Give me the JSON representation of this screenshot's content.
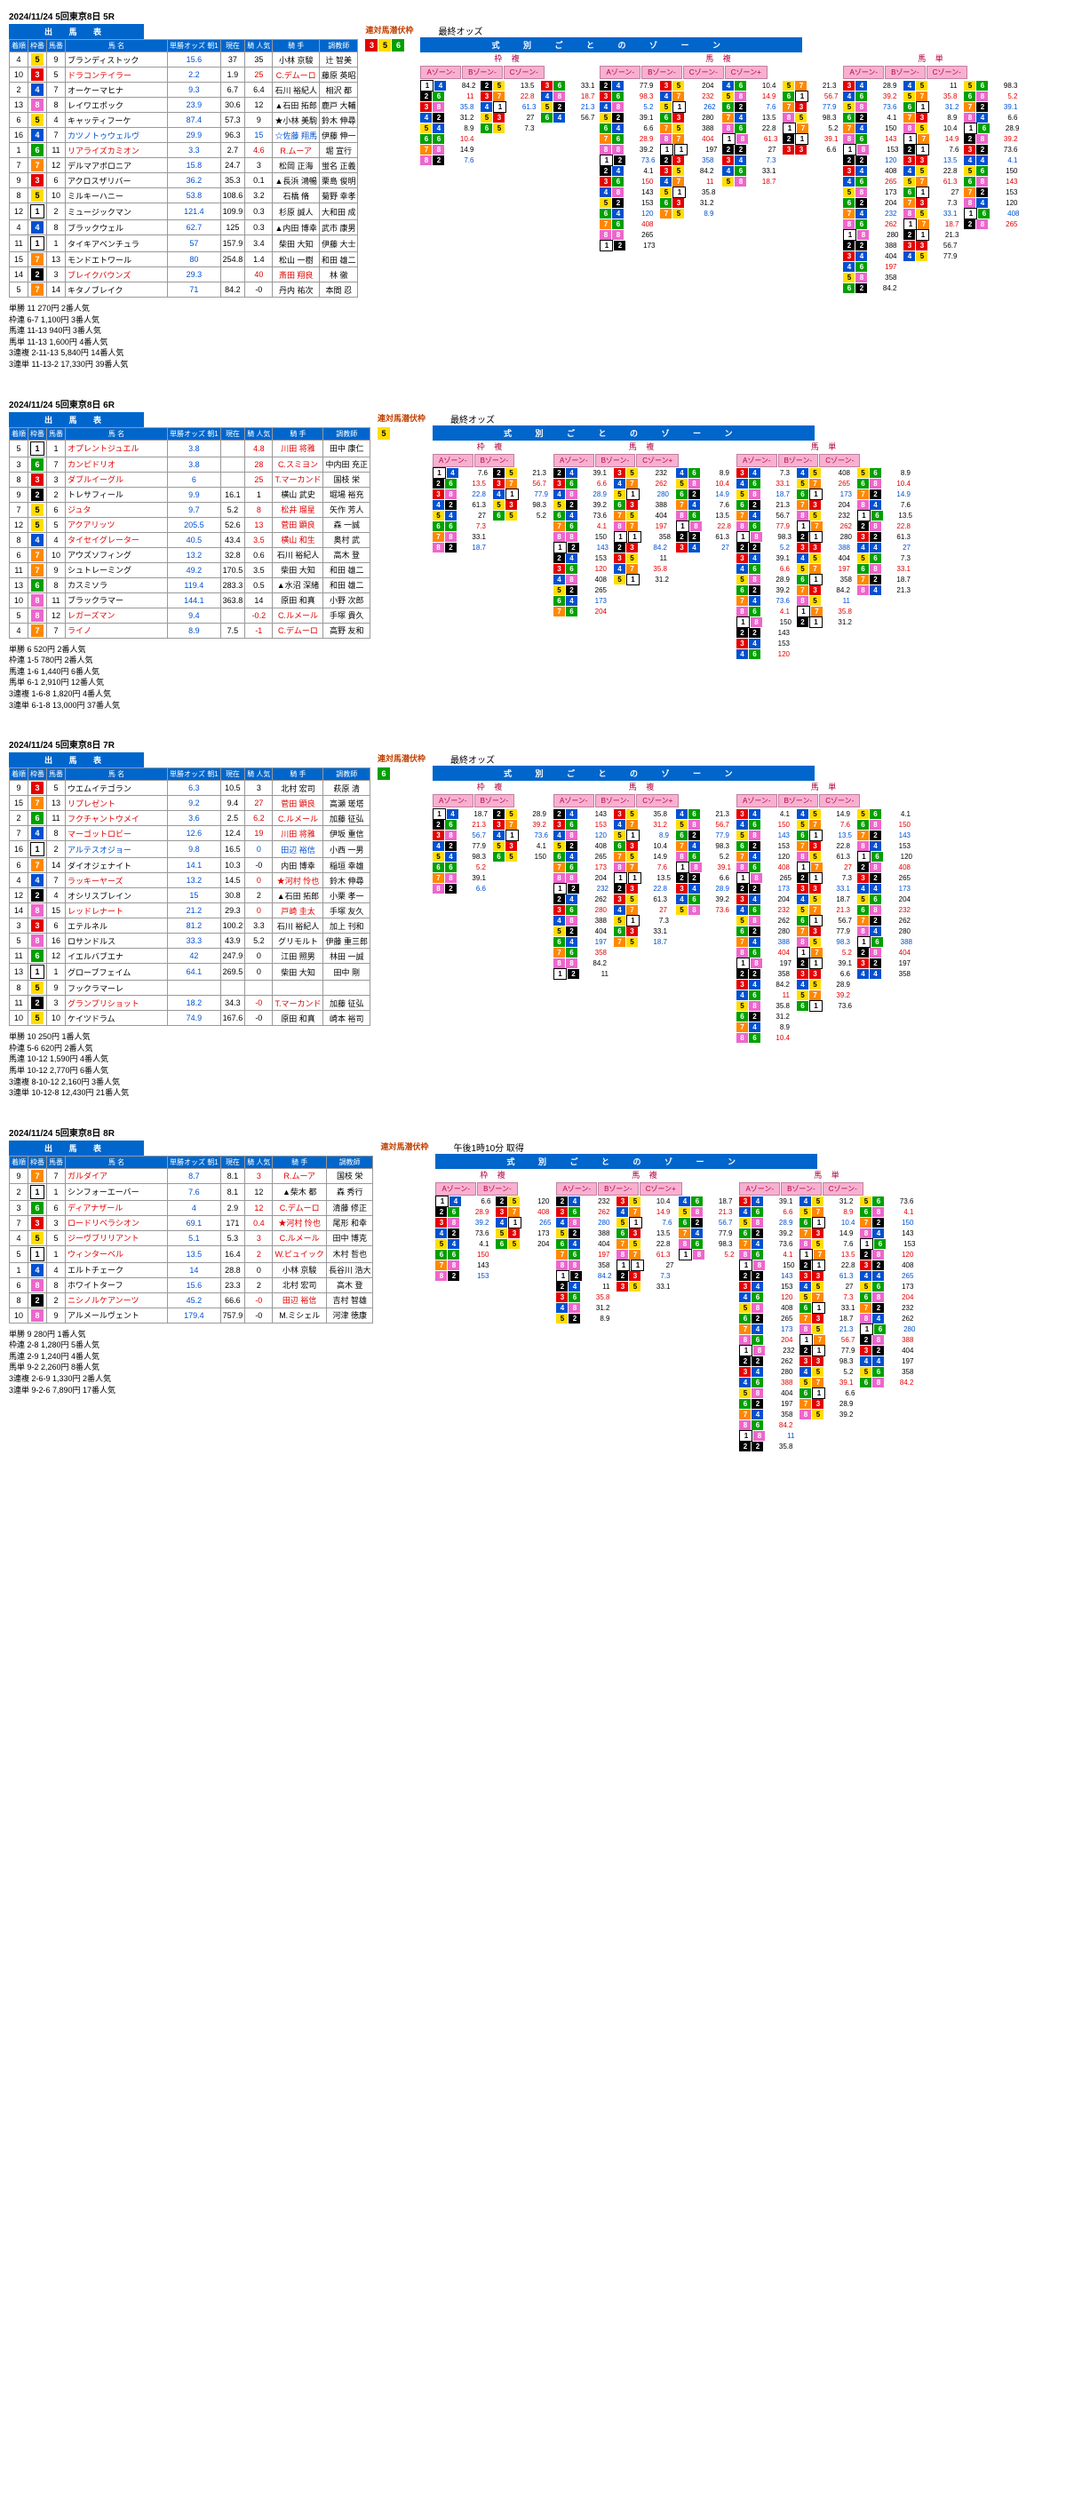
{
  "races": [
    {
      "date": "2024/11/24  5回東京8日  5R",
      "headers": {
        "left": "出 馬 表",
        "odds": "最終オッズ",
        "right": "式 別 ご と の ゾ ー ン"
      },
      "cols": [
        "着順",
        "枠番",
        "馬番",
        "馬 名",
        "単勝オッズ 朝1",
        "現在",
        "騎 人気",
        "騎 手",
        "調教師"
      ],
      "horses": [
        {
          "fr": 4,
          "wk": 5,
          "no": 9,
          "nm": "ブランディストック",
          "o1": "15.6",
          "o2": "37",
          "chg": "35",
          "jk": "小林 京駿",
          "tr": "辻 智美",
          "cls": ""
        },
        {
          "fr": 10,
          "wk": 3,
          "no": 5,
          "nm": "ドラコンテイラー",
          "o1": "2.2",
          "o2": "1.9",
          "chg": "25",
          "jk": "C.デムーロ",
          "tr": "藤原 英昭",
          "cls": "red"
        },
        {
          "fr": 2,
          "wk": 4,
          "no": 7,
          "nm": "オーケーマヒナ",
          "o1": "9.3",
          "o2": "6.7",
          "chg": "6.4",
          "jk": "石川 裕紀人",
          "tr": "相沢 都",
          "cls": ""
        },
        {
          "fr": 13,
          "wk": 8,
          "no": 8,
          "nm": "レイワエポック",
          "o1": "23.9",
          "o2": "30.6",
          "chg": "12",
          "jk": "▲石田 拓郎",
          "tr": "鹿戸 大輔",
          "cls": ""
        },
        {
          "fr": 6,
          "wk": 5,
          "no": 4,
          "nm": "キャッティフーケ",
          "o1": "87.4",
          "o2": "57.3",
          "chg": "9",
          "jk": "★小林 美駒",
          "tr": "鈴木 伸尋",
          "cls": ""
        },
        {
          "fr": 16,
          "wk": 4,
          "no": 7,
          "nm": "カツノトゥウェルヴ",
          "o1": "29.9",
          "o2": "96.3",
          "chg": "15",
          "jk": "☆佐藤 翔馬",
          "tr": "伊藤 伸一",
          "cls": "blue"
        },
        {
          "fr": 1,
          "wk": 6,
          "no": 11,
          "nm": "リアライズカミオン",
          "o1": "3.3",
          "o2": "2.7",
          "chg": "4.6",
          "jk": "R.ムーア",
          "tr": "堀 宣行",
          "cls": "red"
        },
        {
          "fr": 7,
          "wk": 7,
          "no": 12,
          "nm": "デルマアボロニア",
          "o1": "15.8",
          "o2": "24.7",
          "chg": "3",
          "jk": "松岡 正海",
          "tr": "蛍名 正義",
          "cls": ""
        },
        {
          "fr": 9,
          "wk": 3,
          "no": 6,
          "nm": "アクロスザリバー",
          "o1": "36.2",
          "o2": "35.3",
          "chg": "0.1",
          "jk": "▲長浜 鴻暢",
          "tr": "栗島 俊明",
          "cls": ""
        },
        {
          "fr": 8,
          "wk": 5,
          "no": 10,
          "nm": "ミルキーハニー",
          "o1": "53.8",
          "o2": "108.6",
          "chg": "3.2",
          "jk": "石橋 脩",
          "tr": "菊野 幸孝",
          "cls": ""
        },
        {
          "fr": 12,
          "wk": 1,
          "no": 2,
          "nm": "ミュージックマン",
          "o1": "121.4",
          "o2": "109.9",
          "chg": "0.3",
          "jk": "杉原 誠人",
          "tr": "大和田 成",
          "cls": ""
        },
        {
          "fr": 4,
          "wk": 4,
          "no": 8,
          "nm": "ブラックウェル",
          "o1": "62.7",
          "o2": "125",
          "chg": "0.3",
          "jk": "▲内田 博幸",
          "tr": "武市 康男",
          "cls": ""
        },
        {
          "fr": 11,
          "wk": 1,
          "no": 1,
          "nm": "タイキアベンチュラ",
          "o1": "57",
          "o2": "157.9",
          "chg": "3.4",
          "jk": "柴田 大知",
          "tr": "伊藤 大士",
          "cls": ""
        },
        {
          "fr": 15,
          "wk": 7,
          "no": 13,
          "nm": "モンドエトワール",
          "o1": "80",
          "o2": "254.8",
          "chg": "1.4",
          "jk": "松山 一樹",
          "tr": "和田 雄二",
          "cls": ""
        },
        {
          "fr": 14,
          "wk": 2,
          "no": 3,
          "nm": "ブレイクバウンズ",
          "o1": "29.3",
          "o2": "",
          "chg": "40",
          "jk": "斎田 翔良",
          "tr": "林 徹",
          "cls": "red"
        },
        {
          "fr": 5,
          "wk": 7,
          "no": 14,
          "nm": "キタノブレイク",
          "o1": "71",
          "o2": "84.2",
          "chg": "-0",
          "jk": "丹内 祐次",
          "tr": "本間 忍",
          "cls": ""
        }
      ],
      "payouts": [
        "単勝  11  270円  2番人気",
        "枠連  6-7  1,100円  3番人気",
        "馬連  11-13  940円  3番人気",
        "馬単  11-13  1,600円  4番人気",
        "3連複  2-11-13  5,840円  14番人気",
        "3連単  11-13-2  17,330円  39番人気"
      ],
      "rentai": "連対馬潜伏枠",
      "rentai_wk": [
        3,
        5,
        6
      ],
      "zone_groups": [
        {
          "title": "枠 複",
          "zones": [
            "Aゾーン-",
            "Bゾーン-",
            "Cゾーン-"
          ],
          "rows": 8
        },
        {
          "title": "馬 複",
          "zones": [
            "Aゾーン-",
            "Bゾーン-",
            "Cゾーン-",
            "Cゾーン+"
          ],
          "rows": 16
        },
        {
          "title": "馬 単",
          "zones": [
            "Aゾーン-",
            "Bゾーン-",
            "Cゾーン-"
          ],
          "rows": 20
        }
      ]
    },
    {
      "date": "2024/11/24  5回東京8日  6R",
      "headers": {
        "left": "出 馬 表",
        "odds": "最終オッズ",
        "right": "式 別 ご と の ゾ ー ン"
      },
      "cols": [
        "着順",
        "枠番",
        "馬番",
        "馬 名",
        "単勝オッズ 朝1",
        "現在",
        "騎 人気",
        "騎 手",
        "調教師"
      ],
      "horses": [
        {
          "fr": 5,
          "wk": 1,
          "no": 1,
          "nm": "オプレントジュエル",
          "o1": "3.8",
          "o2": "",
          "chg": "4.8",
          "jk": "川田 将雅",
          "tr": "田中 康仁",
          "cls": "red"
        },
        {
          "fr": 3,
          "wk": 6,
          "no": 7,
          "nm": "カンピドリオ",
          "o1": "3.8",
          "o2": "",
          "chg": "28",
          "jk": "C.スミヨン",
          "tr": "中内田 充正",
          "cls": "red"
        },
        {
          "fr": 8,
          "wk": 3,
          "no": 3,
          "nm": "ダブルイーグル",
          "o1": "6",
          "o2": "",
          "chg": "25",
          "jk": "T.マーカンド",
          "tr": "国枝 栄",
          "cls": "red"
        },
        {
          "fr": 9,
          "wk": 2,
          "no": 2,
          "nm": "トレサフィール",
          "o1": "9.9",
          "o2": "16.1",
          "chg": "1",
          "jk": "横山 武史",
          "tr": "堀場 裕充",
          "cls": ""
        },
        {
          "fr": 7,
          "wk": 5,
          "no": 6,
          "nm": "ジュタ",
          "o1": "9.7",
          "o2": "5.2",
          "chg": "8",
          "jk": "松井 瑠星",
          "tr": "矢作 芳人",
          "cls": "red"
        },
        {
          "fr": 12,
          "wk": 5,
          "no": 5,
          "nm": "アクアリッツ",
          "o1": "205.5",
          "o2": "52.6",
          "chg": "13",
          "jk": "菅田 顕良",
          "tr": "森 一誠",
          "cls": "red"
        },
        {
          "fr": 8,
          "wk": 4,
          "no": 4,
          "nm": "タイセイグレーター",
          "o1": "40.5",
          "o2": "43.4",
          "chg": "3.5",
          "jk": "横山 和生",
          "tr": "奥村 武",
          "cls": "red"
        },
        {
          "fr": 6,
          "wk": 7,
          "no": 10,
          "nm": "アウズソフィング",
          "o1": "13.2",
          "o2": "32.8",
          "chg": "0.6",
          "jk": "石川 裕紀人",
          "tr": "高木 登",
          "cls": ""
        },
        {
          "fr": 11,
          "wk": 7,
          "no": 9,
          "nm": "シュトレーミング",
          "o1": "49.2",
          "o2": "170.5",
          "chg": "3.5",
          "jk": "柴田 大知",
          "tr": "和田 雄二",
          "cls": ""
        },
        {
          "fr": 13,
          "wk": 6,
          "no": 8,
          "nm": "カスミソラ",
          "o1": "119.4",
          "o2": "283.3",
          "chg": "0.5",
          "jk": "▲水沼 深緒",
          "tr": "和田 雄二",
          "cls": ""
        },
        {
          "fr": 10,
          "wk": 8,
          "no": 11,
          "nm": "ブラックラマー",
          "o1": "144.1",
          "o2": "363.8",
          "chg": "14",
          "jk": "原田 和真",
          "tr": "小野 次郎",
          "cls": ""
        },
        {
          "fr": 5,
          "wk": 8,
          "no": 12,
          "nm": "レガーズマン",
          "o1": "9.4",
          "o2": "",
          "chg": "-0.2",
          "jk": "C.ルメール",
          "tr": "手塚 貴久",
          "cls": "red"
        },
        {
          "fr": 4,
          "wk": 7,
          "no": 7,
          "nm": "ライノ",
          "o1": "8.9",
          "o2": "7.5",
          "chg": "-1",
          "jk": "C.デムーロ",
          "tr": "高野 友和",
          "cls": "red"
        }
      ],
      "payouts": [
        "単勝  6  520円  2番人気",
        "枠連  1-5  780円  2番人気",
        "馬連  1-6  1,440円  6番人気",
        "馬単  6-1  2,910円  12番人気",
        "3連複  1-6-8  1,820円  4番人気",
        "3連単  6-1-8  13,000円  37番人気"
      ],
      "rentai": "連対馬潜伏枠",
      "rentai_wk": [
        5
      ],
      "zone_groups": [
        {
          "title": "枠 複",
          "zones": [
            "Aゾーン-",
            "Bゾーン-"
          ],
          "rows": 8
        },
        {
          "title": "馬 複",
          "zones": [
            "Aゾーン-",
            "Bゾーン-",
            "Cゾーン+"
          ],
          "rows": 14
        },
        {
          "title": "馬 単",
          "zones": [
            "Aゾーン-",
            "Bゾーン-",
            "Cゾーン-"
          ],
          "rows": 18
        }
      ]
    },
    {
      "date": "2024/11/24  5回東京8日  7R",
      "headers": {
        "left": "出 馬 表",
        "odds": "最終オッズ",
        "right": "式 別 ご と の ゾ ー ン"
      },
      "cols": [
        "着順",
        "枠番",
        "馬番",
        "馬 名",
        "単勝オッズ 朝1",
        "現在",
        "騎 人気",
        "騎 手",
        "調教師"
      ],
      "horses": [
        {
          "fr": 9,
          "wk": 3,
          "no": 5,
          "nm": "ウエムイテゴラン",
          "o1": "6.3",
          "o2": "10.5",
          "chg": "3",
          "jk": "北村 宏司",
          "tr": "萩原 清",
          "cls": ""
        },
        {
          "fr": 15,
          "wk": 7,
          "no": 13,
          "nm": "リプレゼント",
          "o1": "9.2",
          "o2": "9.4",
          "chg": "27",
          "jk": "菅田 顕良",
          "tr": "高瀬 瑳塔",
          "cls": "red"
        },
        {
          "fr": 2,
          "wk": 6,
          "no": 11,
          "nm": "フクチャントウメイ",
          "o1": "3.6",
          "o2": "2.5",
          "chg": "6.2",
          "jk": "C.ルメール",
          "tr": "加藤 征弘",
          "cls": "red"
        },
        {
          "fr": 7,
          "wk": 4,
          "no": 8,
          "nm": "マーゴットロビー",
          "o1": "12.6",
          "o2": "12.4",
          "chg": "19",
          "jk": "川田 将雅",
          "tr": "伊坂 重信",
          "cls": "red"
        },
        {
          "fr": 16,
          "wk": 1,
          "no": 2,
          "nm": "アルテスオジョー",
          "o1": "9.8",
          "o2": "16.5",
          "chg": "0",
          "jk": "田辺 裕信",
          "tr": "小西 一男",
          "cls": "blue"
        },
        {
          "fr": 6,
          "wk": 7,
          "no": 14,
          "nm": "ダイオジェナイト",
          "o1": "14.1",
          "o2": "10.3",
          "chg": "-0",
          "jk": "内田 博幸",
          "tr": "稲垣 幸雄",
          "cls": ""
        },
        {
          "fr": 4,
          "wk": 4,
          "no": 7,
          "nm": "ラッキーヤーズ",
          "o1": "13.2",
          "o2": "14.5",
          "chg": "0",
          "jk": "★河村 怜也",
          "tr": "鈴木 伸尋",
          "cls": "red"
        },
        {
          "fr": 12,
          "wk": 2,
          "no": 4,
          "nm": "オシリスブレイン",
          "o1": "15",
          "o2": "30.8",
          "chg": "2",
          "jk": "▲石田 拓郎",
          "tr": "小栗 孝一",
          "cls": ""
        },
        {
          "fr": 14,
          "wk": 8,
          "no": 15,
          "nm": "レッドレナート",
          "o1": "21.2",
          "o2": "29.3",
          "chg": "0",
          "jk": "戸崎 圭太",
          "tr": "手塚 友久",
          "cls": "red"
        },
        {
          "fr": 3,
          "wk": 3,
          "no": 6,
          "nm": "エテルネル",
          "o1": "81.2",
          "o2": "100.2",
          "chg": "3.3",
          "jk": "石川 裕紀人",
          "tr": "加上 刊和",
          "cls": ""
        },
        {
          "fr": 5,
          "wk": 8,
          "no": 16,
          "nm": "ロサンドルス",
          "o1": "33.3",
          "o2": "43.9",
          "chg": "5.2",
          "jk": "グリモルト",
          "tr": "伊藤 重三郎",
          "cls": ""
        },
        {
          "fr": 11,
          "wk": 6,
          "no": 12,
          "nm": "イエルバブエナ",
          "o1": "42",
          "o2": "247.9",
          "chg": "0",
          "jk": "江田 照男",
          "tr": "林田 一誠",
          "cls": ""
        },
        {
          "fr": 13,
          "wk": 1,
          "no": 1,
          "nm": "グローブフェイム",
          "o1": "64.1",
          "o2": "269.5",
          "chg": "0",
          "jk": "柴田 大知",
          "tr": "田中 剛",
          "cls": ""
        },
        {
          "fr": 8,
          "wk": 5,
          "no": 9,
          "nm": "フックラマーレ",
          "o1": "",
          "o2": "",
          "chg": "",
          "jk": "",
          "tr": "",
          "cls": ""
        },
        {
          "fr": 11,
          "wk": 2,
          "no": 3,
          "nm": "グランプリショット",
          "o1": "18.2",
          "o2": "34.3",
          "chg": "-0",
          "jk": "T.マーカンド",
          "tr": "加藤 征弘",
          "cls": "red"
        },
        {
          "fr": 10,
          "wk": 5,
          "no": 10,
          "nm": "ケイツドラム",
          "o1": "74.9",
          "o2": "167.6",
          "chg": "-0",
          "jk": "原田 和真",
          "tr": "崎本 裕司",
          "cls": ""
        }
      ],
      "payouts": [
        "単勝  10  250円  1番人気",
        "枠連  5-6  620円  2番人気",
        "馬連  10-12  1,590円  4番人気",
        "馬単  10-12  2,770円  6番人気",
        "3連複  8-10-12  2,160円  3番人気",
        "3連単  10-12-8  12,430円  21番人気"
      ],
      "rentai": "連対馬潜伏枠",
      "rentai_wk": [
        6
      ],
      "zone_groups": [
        {
          "title": "枠 複",
          "zones": [
            "Aゾーン-",
            "Bゾーン-"
          ],
          "rows": 8
        },
        {
          "title": "馬 複",
          "zones": [
            "Aゾーン-",
            "Bゾーン-",
            "Cゾーン+"
          ],
          "rows": 16
        },
        {
          "title": "馬 単",
          "zones": [
            "Aゾーン-",
            "Bゾーン-",
            "Cゾーン-"
          ],
          "rows": 22
        }
      ]
    },
    {
      "date": "2024/11/24  5回東京8日  8R",
      "headers": {
        "left": "出 馬 表",
        "odds": "午後1時10分 取得",
        "right": "式 別 ご と の ゾ ー ン"
      },
      "cols": [
        "着順",
        "枠番",
        "馬番",
        "馬 名",
        "単勝オッズ 朝1",
        "現在",
        "騎 人気",
        "騎 手",
        "調教師"
      ],
      "horses": [
        {
          "fr": 9,
          "wk": 7,
          "no": 7,
          "nm": "ガルダイア",
          "o1": "8.7",
          "o2": "8.1",
          "chg": "3",
          "jk": "R.ムーア",
          "tr": "国枝 栄",
          "cls": "red"
        },
        {
          "fr": 2,
          "wk": 1,
          "no": 1,
          "nm": "シンフォーエーバー",
          "o1": "7.6",
          "o2": "8.1",
          "chg": "12",
          "jk": "▲柴木 都",
          "tr": "森 秀行",
          "cls": ""
        },
        {
          "fr": 3,
          "wk": 6,
          "no": 6,
          "nm": "ディアナザール",
          "o1": "4",
          "o2": "2.9",
          "chg": "12",
          "jk": "C.デムーロ",
          "tr": "清藤 修正",
          "cls": "red"
        },
        {
          "fr": 7,
          "wk": 3,
          "no": 3,
          "nm": "ロードリベラシオン",
          "o1": "69.1",
          "o2": "171",
          "chg": "0.4",
          "jk": "★河村 怜也",
          "tr": "尾形 和幸",
          "cls": "red"
        },
        {
          "fr": 4,
          "wk": 5,
          "no": 5,
          "nm": "ジーヴブリリアント",
          "o1": "5.1",
          "o2": "5.3",
          "chg": "3",
          "jk": "C.ルメール",
          "tr": "田中 博克",
          "cls": "red"
        },
        {
          "fr": 5,
          "wk": 1,
          "no": 1,
          "nm": "ウィンターベル",
          "o1": "13.5",
          "o2": "16.4",
          "chg": "2",
          "jk": "W.ピュイック",
          "tr": "木村 哲也",
          "cls": "red"
        },
        {
          "fr": 1,
          "wk": 4,
          "no": 4,
          "nm": "エルトチェーク",
          "o1": "14",
          "o2": "28.8",
          "chg": "0",
          "jk": "小林 京駿",
          "tr": "長谷川 浩大",
          "cls": ""
        },
        {
          "fr": 6,
          "wk": 8,
          "no": 8,
          "nm": "ホワイトターフ",
          "o1": "15.6",
          "o2": "23.3",
          "chg": "2",
          "jk": "北村 宏司",
          "tr": "高木 登",
          "cls": ""
        },
        {
          "fr": 8,
          "wk": 2,
          "no": 2,
          "nm": "ニシノルケアンーツ",
          "o1": "45.2",
          "o2": "66.6",
          "chg": "-0",
          "jk": "田辺 裕信",
          "tr": "吉村 智雄",
          "cls": "red"
        },
        {
          "fr": 10,
          "wk": 8,
          "no": 9,
          "nm": "アルメールヴェント",
          "o1": "179.4",
          "o2": "757.9",
          "chg": "-0",
          "jk": "M.ミシェル",
          "tr": "河津 徳康",
          "cls": ""
        }
      ],
      "payouts": [
        "単勝  9  280円  1番人気",
        "枠連  2-8  1,280円  5番人気",
        "馬連  2-9  1,240円  4番人気",
        "馬単  9-2  2,260円  8番人気",
        "3連複  2-6-9  1,330円  2番人気",
        "3連単  9-2-6  7,890円  17番人気"
      ],
      "rentai": "連対馬潜伏枠",
      "rentai_wk": [],
      "zone_groups": [
        {
          "title": "枠 複",
          "zones": [
            "Aゾーン-",
            "Bゾーン-"
          ],
          "rows": 8
        },
        {
          "title": "馬 複",
          "zones": [
            "Aゾーン-",
            "Bゾーン-",
            "Cゾーン+"
          ],
          "rows": 12
        },
        {
          "title": "馬 単",
          "zones": [
            "Aゾーン-",
            "Bゾーン-",
            "Cゾーン-"
          ],
          "rows": 24
        }
      ]
    }
  ],
  "sample_odds": [
    "84.2",
    "11",
    "35.8",
    "31.2",
    "8.9",
    "10.4",
    "14.9",
    "7.6",
    "13.5",
    "22.8",
    "61.3",
    "27",
    "7.3",
    "33.1",
    "18.7",
    "21.3",
    "56.7",
    "77.9",
    "98.3",
    "5.2",
    "39.1",
    "6.6",
    "28.9",
    "39.2",
    "73.6",
    "4.1",
    "150",
    "143",
    "153",
    "120",
    "408",
    "265",
    "173",
    "204",
    "232",
    "262",
    "280",
    "388",
    "404",
    "197",
    "358"
  ]
}
